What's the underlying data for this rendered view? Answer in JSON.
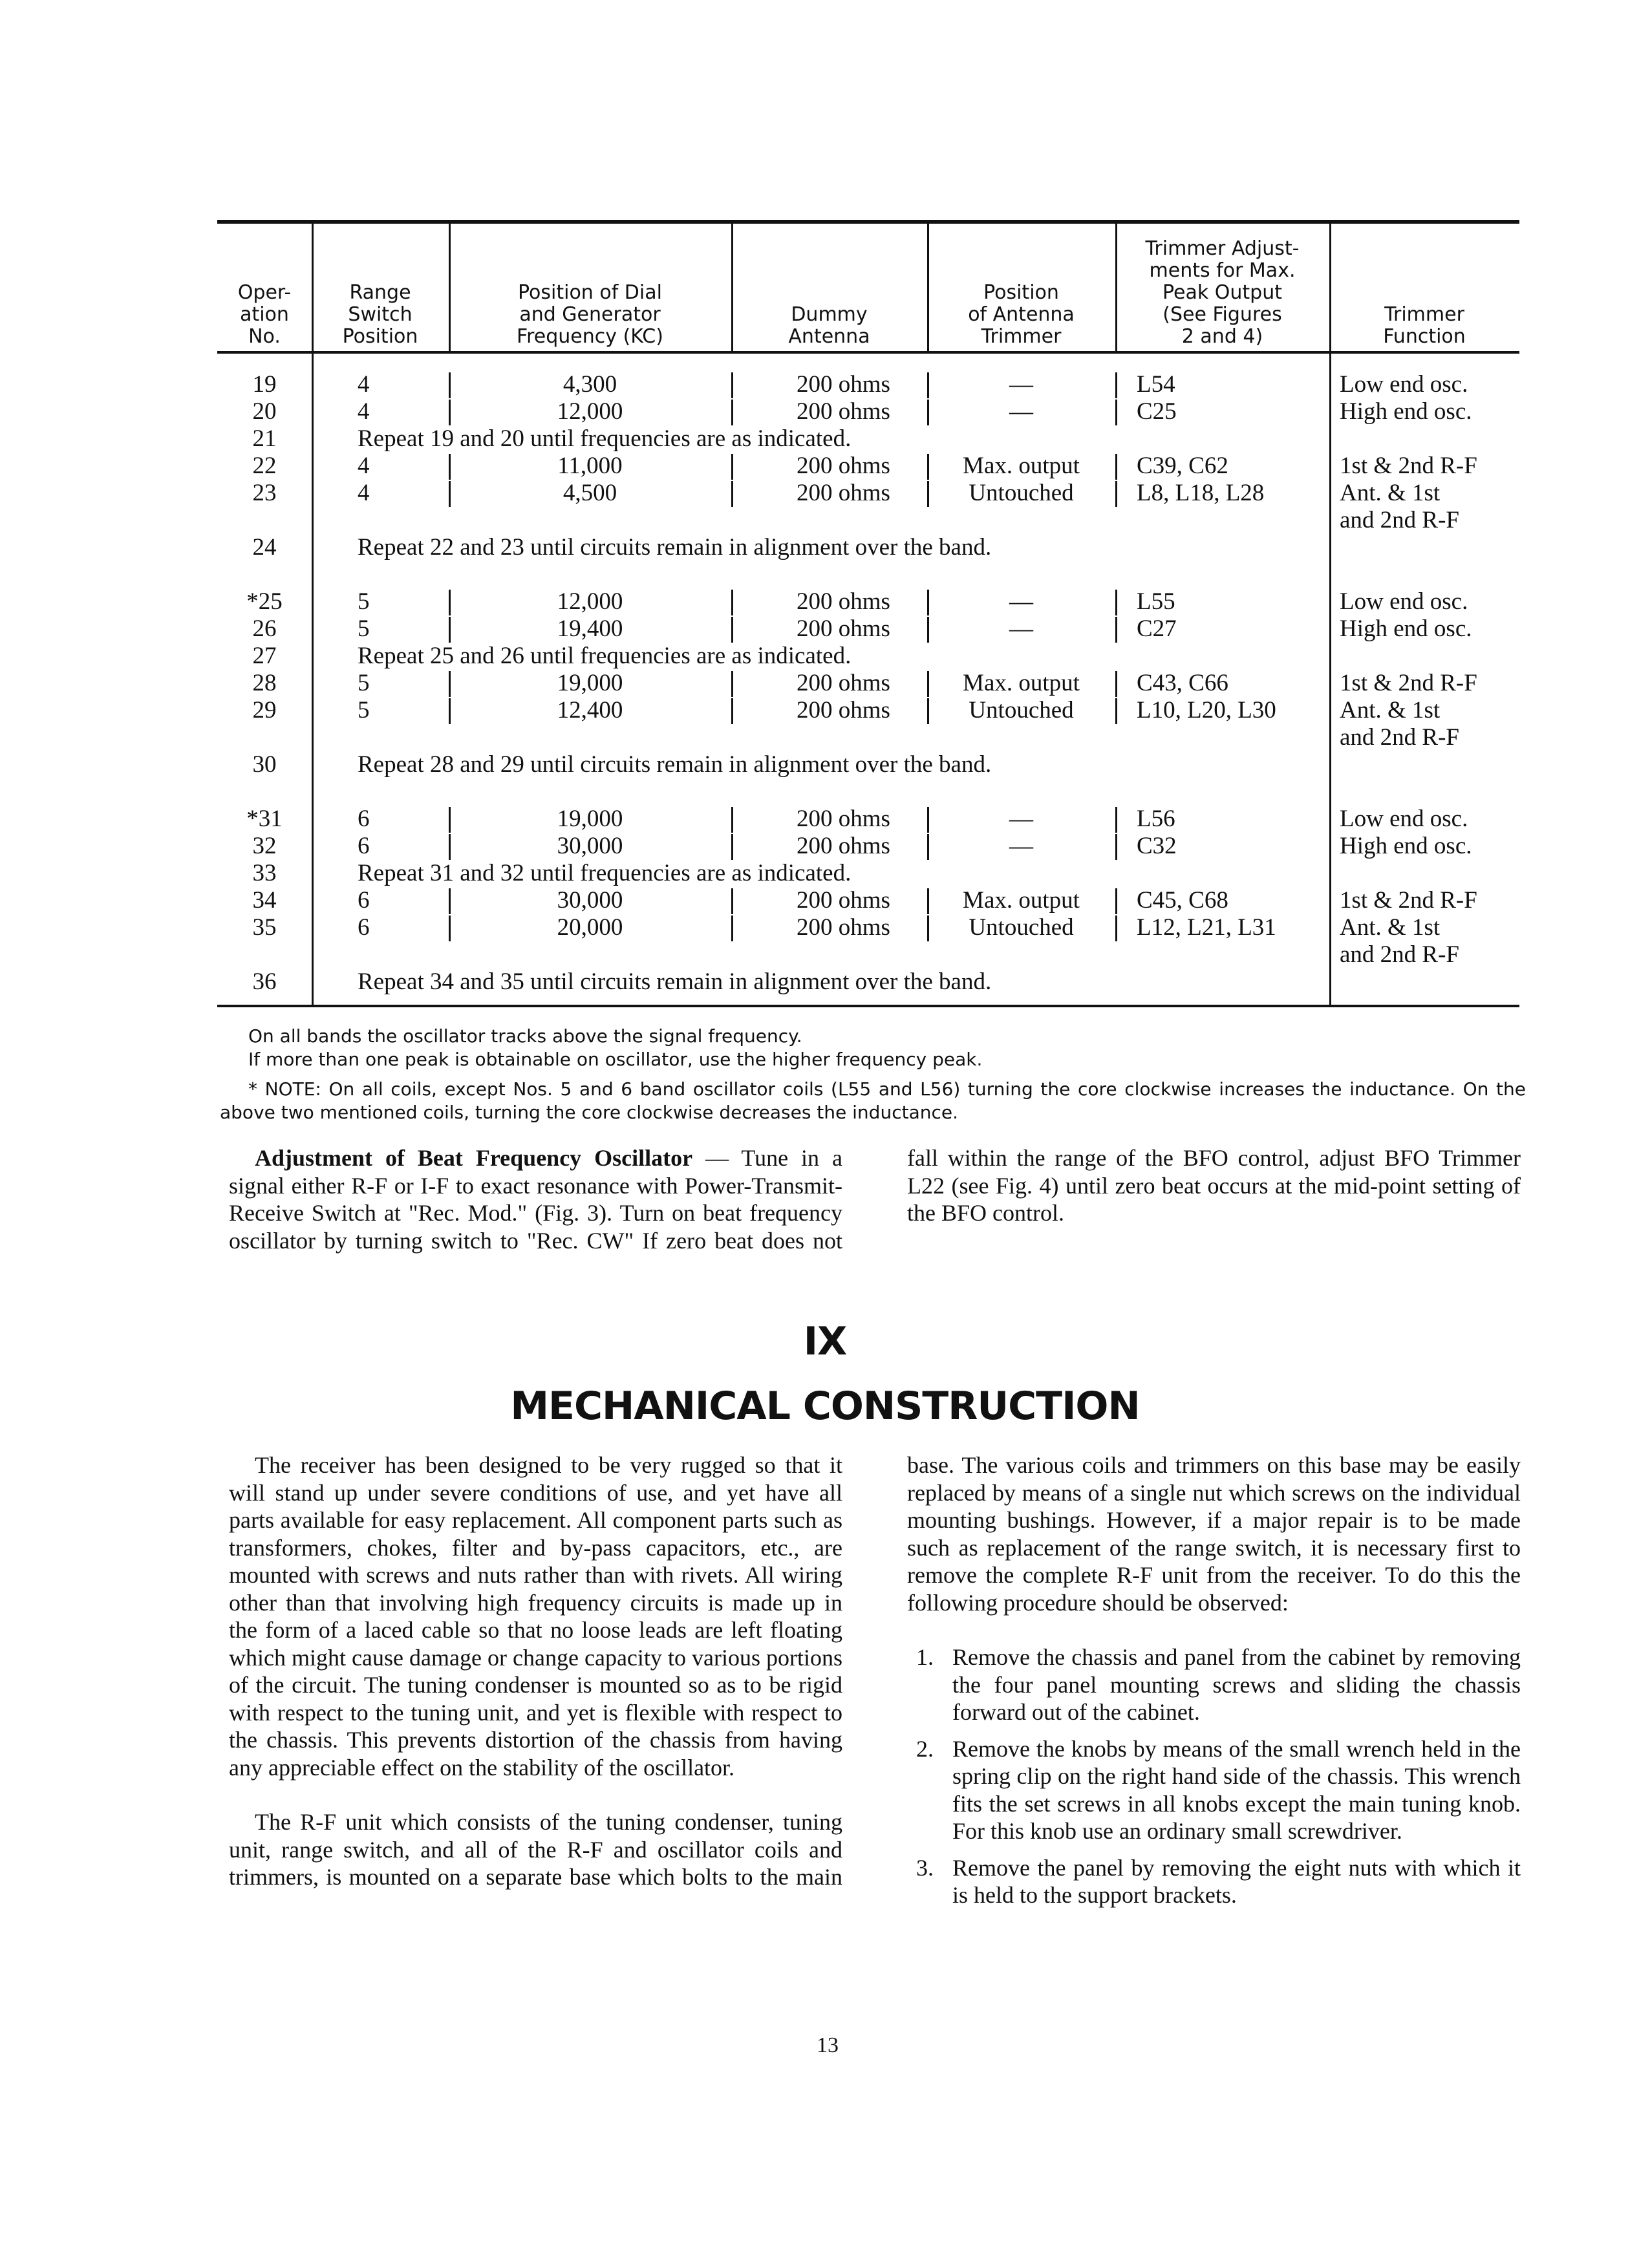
{
  "table": {
    "headers": [
      [
        "Oper-",
        "ation",
        "No."
      ],
      [
        "Range",
        "Switch",
        "Position"
      ],
      [
        "Position of Dial",
        "and Generator",
        "Frequency (KC)"
      ],
      [
        "Dummy",
        "Antenna"
      ],
      [
        "Position",
        "of Antenna",
        "Trimmer"
      ],
      [
        "Trimmer Adjust-",
        "ments for Max.",
        "Peak Output",
        "(See Figures",
        "2 and 4)"
      ],
      [
        "Trimmer",
        "Function"
      ]
    ],
    "rows": [
      {
        "op": "19",
        "range": "4",
        "freq": "4,300",
        "dummy": "200 ohms",
        "ant": "—",
        "trim": "L54",
        "func": "Low end osc."
      },
      {
        "op": "20",
        "range": "4",
        "freq": "12,000",
        "dummy": "200 ohms",
        "ant": "—",
        "trim": "C25",
        "func": "High end osc."
      },
      {
        "op": "21",
        "repeat": "Repeat 19 and 20 until frequencies are as indicated."
      },
      {
        "op": "22",
        "range": "4",
        "freq": "11,000",
        "dummy": "200 ohms",
        "ant": "Max. output",
        "trim": "C39, C62",
        "func": "1st & 2nd R-F"
      },
      {
        "op": "23",
        "range": "4",
        "freq": "4,500",
        "dummy": "200 ohms",
        "ant": "Untouched",
        "trim": "L8, L18, L28",
        "func": "Ant. & 1st",
        "func2": "and 2nd R-F"
      },
      {
        "op": "24",
        "repeat": "Repeat 22 and 23 until circuits remain in alignment over the band."
      },
      {
        "op": "*25",
        "range": "5",
        "freq": "12,000",
        "dummy": "200 ohms",
        "ant": "—",
        "trim": "L55",
        "func": "Low end osc."
      },
      {
        "op": "26",
        "range": "5",
        "freq": "19,400",
        "dummy": "200 ohms",
        "ant": "—",
        "trim": "C27",
        "func": "High end osc."
      },
      {
        "op": "27",
        "repeat": "Repeat 25 and 26 until frequencies are as indicated."
      },
      {
        "op": "28",
        "range": "5",
        "freq": "19,000",
        "dummy": "200 ohms",
        "ant": "Max. output",
        "trim": "C43, C66",
        "func": "1st & 2nd R-F"
      },
      {
        "op": "29",
        "range": "5",
        "freq": "12,400",
        "dummy": "200 ohms",
        "ant": "Untouched",
        "trim": "L10, L20, L30",
        "func": "Ant. & 1st",
        "func2": "and 2nd R-F"
      },
      {
        "op": "30",
        "repeat": "Repeat 28 and 29 until circuits remain in alignment over the band."
      },
      {
        "op": "*31",
        "range": "6",
        "freq": "19,000",
        "dummy": "200 ohms",
        "ant": "—",
        "trim": "L56",
        "func": "Low end osc."
      },
      {
        "op": "32",
        "range": "6",
        "freq": "30,000",
        "dummy": "200 ohms",
        "ant": "—",
        "trim": "C32",
        "func": "High end osc."
      },
      {
        "op": "33",
        "repeat": "Repeat 31 and 32 until frequencies are as indicated."
      },
      {
        "op": "34",
        "range": "6",
        "freq": "30,000",
        "dummy": "200 ohms",
        "ant": "Max. output",
        "trim": "C45, C68",
        "func": "1st & 2nd R-F"
      },
      {
        "op": "35",
        "range": "6",
        "freq": "20,000",
        "dummy": "200 ohms",
        "ant": "Untouched",
        "trim": "L12, L21, L31",
        "func": "Ant. & 1st",
        "func2": "and 2nd R-F"
      },
      {
        "op": "36",
        "repeat": "Repeat 34 and 35 until circuits remain in alignment over the band."
      }
    ]
  },
  "notes": {
    "line1": "On all bands the oscillator tracks above the signal frequency.",
    "line2": "If more than one peak is obtainable on oscillator, use the higher frequency peak.",
    "note": "* NOTE: On all coils, except Nos. 5 and 6 band oscillator coils (L55 and L56) turning the core clockwise increases the inductance. On the above two mentioned coils, turning the core clockwise decreases the inductance."
  },
  "bfo": {
    "heading": "Adjustment of Beat Frequency Oscillator",
    "text": " — Tune in a signal either R-F or I-F to exact resonance with Power-Transmit-Receive Switch at \"Rec. Mod.\" (Fig. 3). Turn on beat frequency oscillator by turning switch to \"Rec. CW\" If zero beat does not fall within the range of the BFO control, adjust BFO Trimmer L22 (see Fig. 4) until zero beat occurs at the mid-point setting of the BFO control."
  },
  "section": {
    "number": "IX",
    "title": "MECHANICAL CONSTRUCTION"
  },
  "body": {
    "p1": "The receiver has been designed to be very rugged so that it will stand up under severe conditions of use, and yet have all parts available for easy replacement. All component parts such as transformers, chokes, filter and by-pass capacitors, etc., are mounted with screws and nuts rather than with rivets. All wiring other than that involving high frequency circuits is made up in the form of a laced cable so that no loose leads are left floating which might cause damage or change capacity to various portions of the circuit. The tuning condenser is mounted so as to be rigid with respect to the tuning unit, and yet is flexible with respect to the chassis. This prevents distortion of the chassis from having any appreciable effect on the stability of the oscillator.",
    "p2": "The R-F unit which consists of the tuning condenser, tuning unit, range switch, and all of the R-F and oscillator coils and trimmers, is mounted on a separate base which bolts to the main base. The various coils and trimmers on this base may be easily replaced by means of a single nut which screws on the individual mounting bushings. However, if a major repair is to be made such as replacement of the range switch, it is necessary first to remove the complete R-F unit from the receiver. To do this the following procedure should be observed:",
    "steps": [
      {
        "n": "1.",
        "text": "Remove the chassis and panel from the cabinet by removing the four panel mounting screws and sliding the chassis forward out of the cabinet."
      },
      {
        "n": "2.",
        "text": "Remove the knobs by means of the small wrench held in the spring clip on the right hand side of the chassis. This wrench fits the set screws in all knobs except the main tuning knob. For this knob use an ordinary small screwdriver."
      },
      {
        "n": "3.",
        "text": "Remove the panel by removing the eight nuts with which it is held to the support brackets."
      }
    ]
  },
  "page_number": "13"
}
